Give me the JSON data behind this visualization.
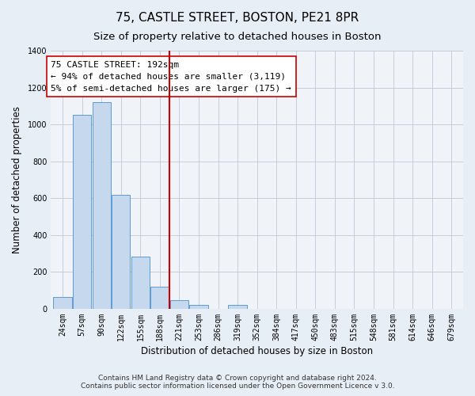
{
  "title": "75, CASTLE STREET, BOSTON, PE21 8PR",
  "subtitle": "Size of property relative to detached houses in Boston",
  "xlabel": "Distribution of detached houses by size in Boston",
  "ylabel": "Number of detached properties",
  "bin_labels": [
    "24sqm",
    "57sqm",
    "90sqm",
    "122sqm",
    "155sqm",
    "188sqm",
    "221sqm",
    "253sqm",
    "286sqm",
    "319sqm",
    "352sqm",
    "384sqm",
    "417sqm",
    "450sqm",
    "483sqm",
    "515sqm",
    "548sqm",
    "581sqm",
    "614sqm",
    "646sqm",
    "679sqm"
  ],
  "bar_values": [
    65,
    1050,
    1120,
    620,
    285,
    120,
    45,
    20,
    0,
    20,
    0,
    0,
    0,
    0,
    0,
    0,
    0,
    0,
    0,
    0,
    0
  ],
  "bar_color": "#c5d8ed",
  "bar_edge_color": "#5b9bd5",
  "vline_x": 5.5,
  "vline_color": "#cc0000",
  "annotation_text": "75 CASTLE STREET: 192sqm\n← 94% of detached houses are smaller (3,119)\n5% of semi-detached houses are larger (175) →",
  "annotation_box_color": "#ffffff",
  "annotation_box_edge": "#cc0000",
  "ylim": [
    0,
    1400
  ],
  "yticks": [
    0,
    200,
    400,
    600,
    800,
    1000,
    1200,
    1400
  ],
  "footer1": "Contains HM Land Registry data © Crown copyright and database right 2024.",
  "footer2": "Contains public sector information licensed under the Open Government Licence v 3.0.",
  "bg_color": "#e8eef5",
  "plot_bg_color": "#f0f4f9",
  "title_fontsize": 11,
  "subtitle_fontsize": 9.5,
  "axis_label_fontsize": 8.5,
  "tick_fontsize": 7,
  "annotation_fontsize": 8,
  "footer_fontsize": 6.5
}
